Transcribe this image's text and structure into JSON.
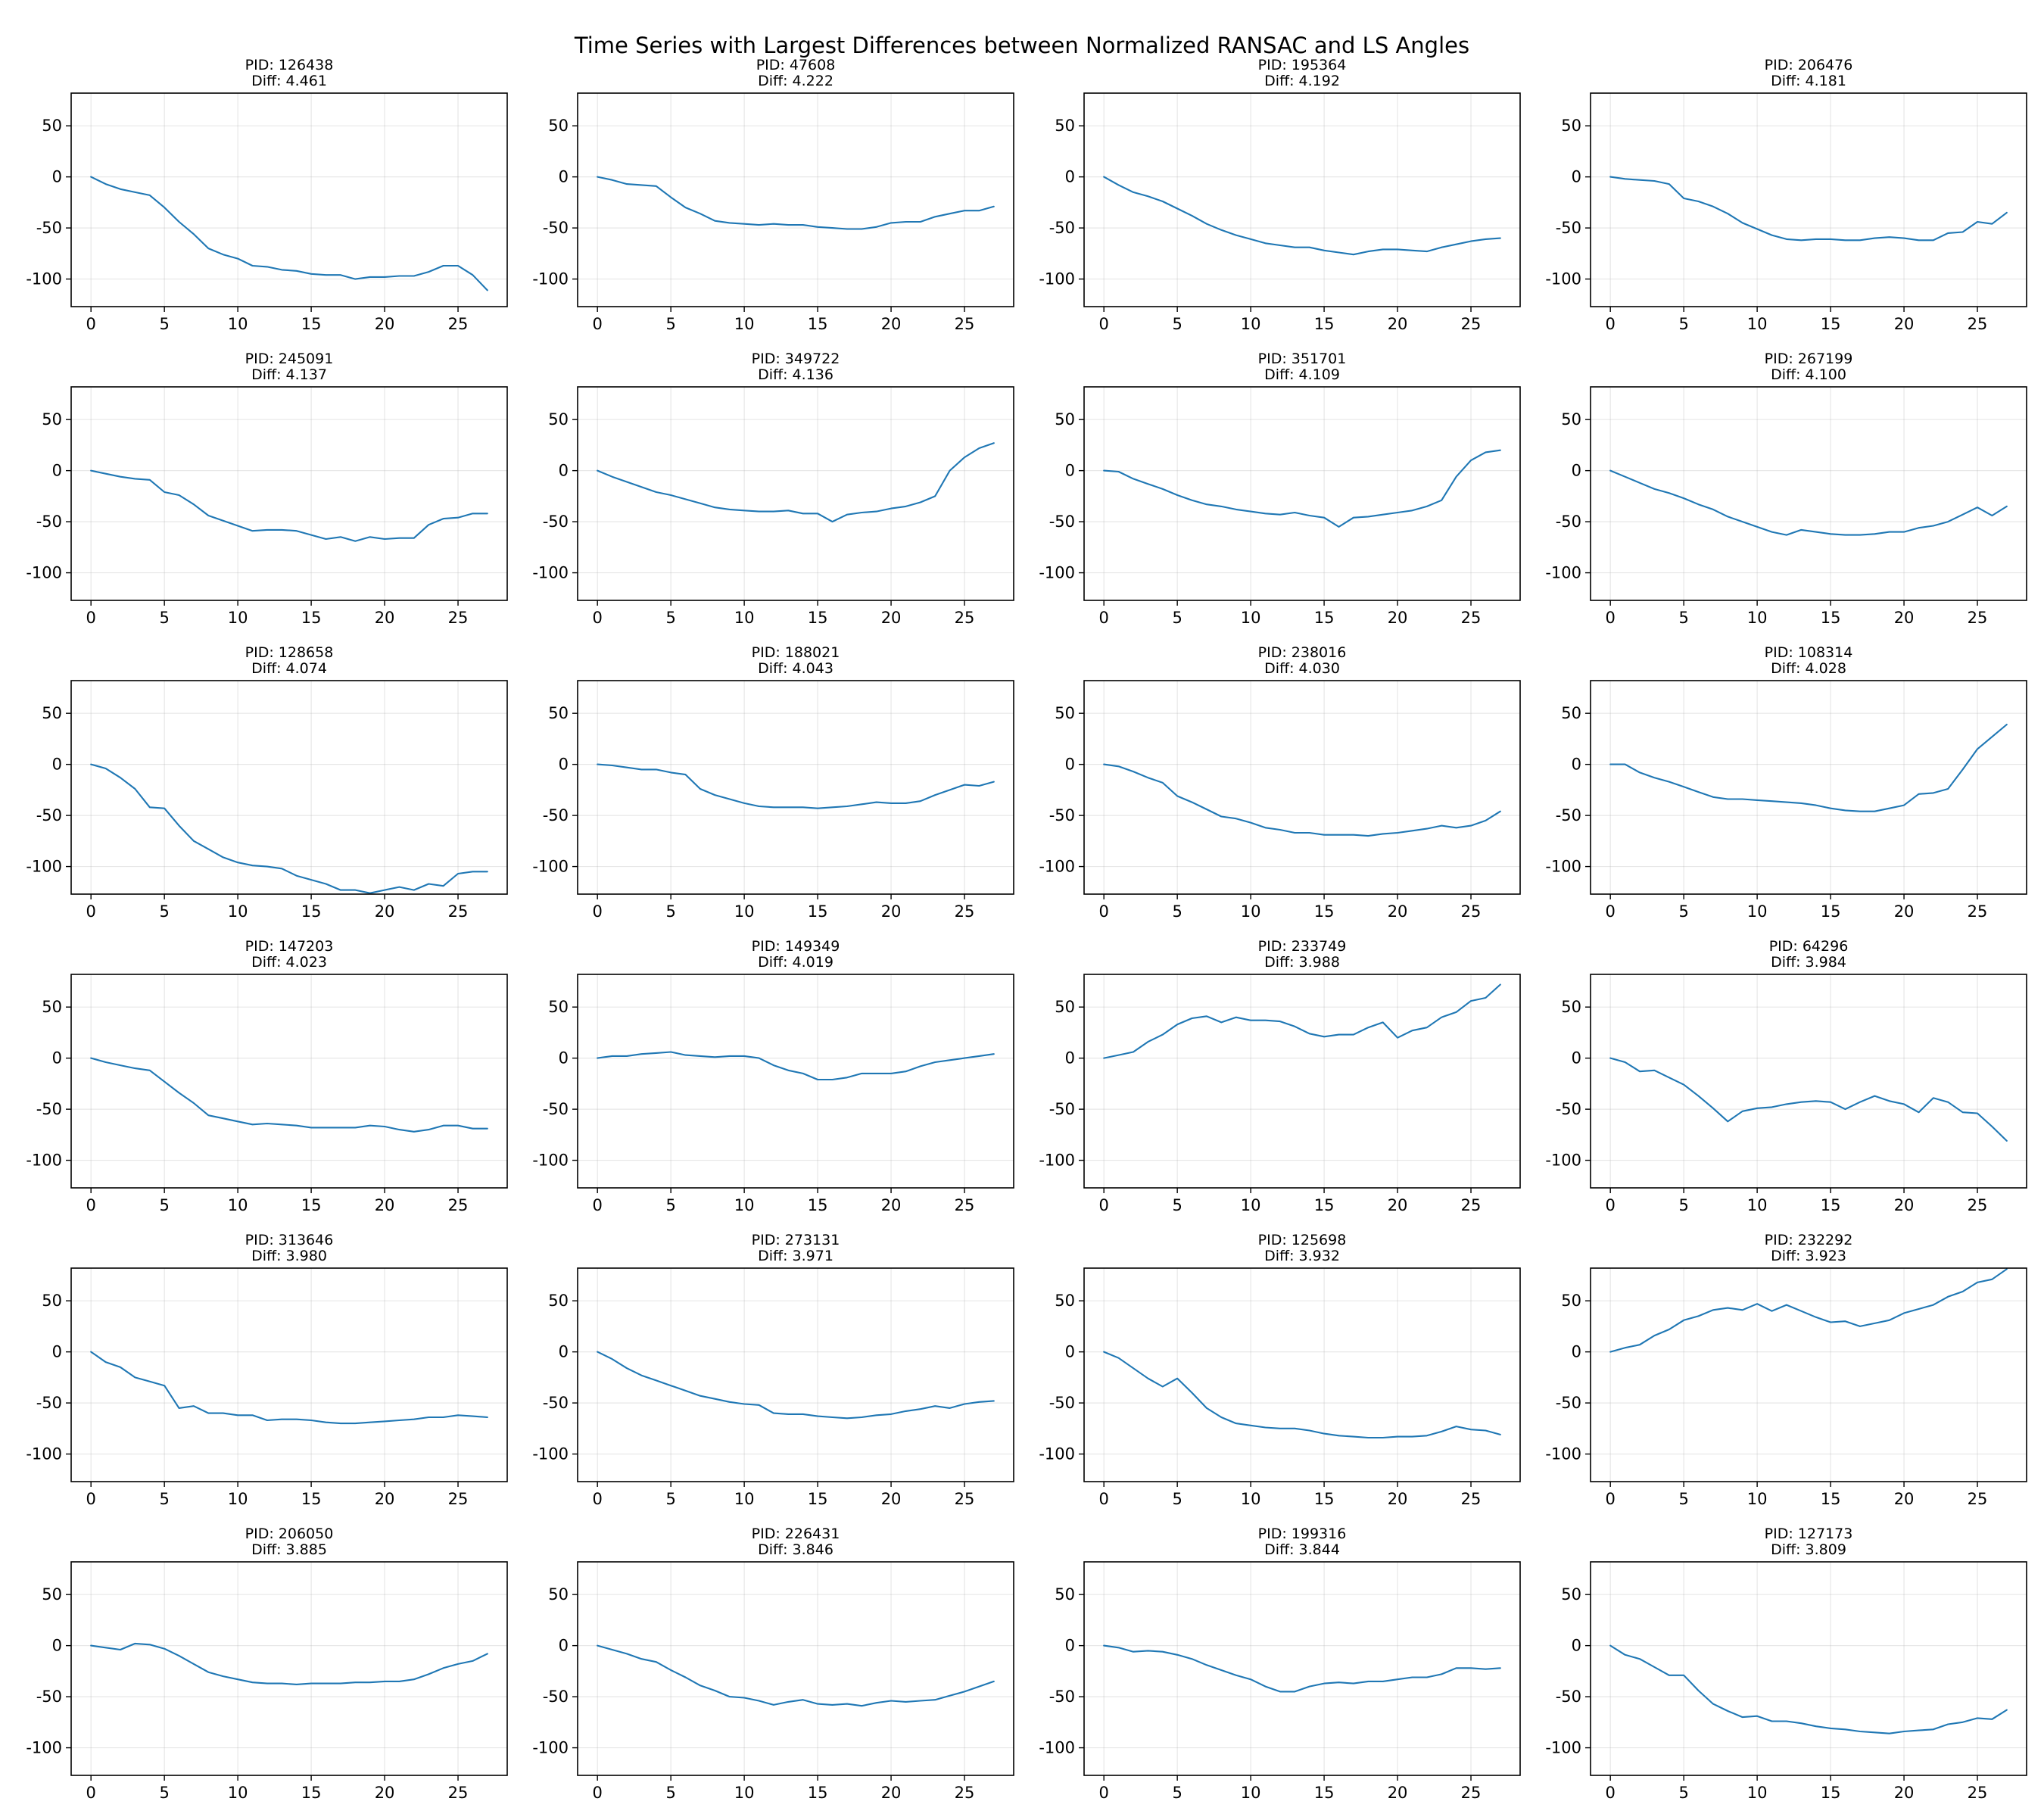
{
  "chart_data": {
    "type": "line",
    "title": "Time Series with Largest Differences between Normalized RANSAC and LS Angles",
    "layout": {
      "rows": 6,
      "cols": 4
    },
    "xlim": [
      -1.35,
      28.35
    ],
    "ylim": [
      -127,
      82
    ],
    "xticks": [
      0,
      5,
      10,
      15,
      20,
      25
    ],
    "yticks": [
      50,
      0,
      -50,
      -100
    ],
    "grid": true,
    "line_color": "#1f77b4",
    "x": [
      0,
      1,
      2,
      3,
      4,
      5,
      6,
      7,
      8,
      9,
      10,
      11,
      12,
      13,
      14,
      15,
      16,
      17,
      18,
      19,
      20,
      21,
      22,
      23,
      24,
      25,
      26,
      27
    ],
    "panels": [
      {
        "pid_label": "PID: 126438",
        "diff_label": "Diff: 4.461",
        "values": [
          0,
          -7,
          -12,
          -15,
          -18,
          -30,
          -44,
          -56,
          -70,
          -76,
          -80,
          -87,
          -88,
          -91,
          -92,
          -95,
          -96,
          -96,
          -100,
          -98,
          -98,
          -97,
          -97,
          -93,
          -87,
          -87,
          -96,
          -111
        ]
      },
      {
        "pid_label": "PID: 47608",
        "diff_label": "Diff: 4.222",
        "values": [
          0,
          -3,
          -7,
          -8,
          -9,
          -20,
          -30,
          -36,
          -43,
          -45,
          -46,
          -47,
          -46,
          -47,
          -47,
          -49,
          -50,
          -51,
          -51,
          -49,
          -45,
          -44,
          -44,
          -39,
          -36,
          -33,
          -33,
          -29
        ]
      },
      {
        "pid_label": "PID: 195364",
        "diff_label": "Diff: 4.192",
        "values": [
          0,
          -8,
          -15,
          -19,
          -24,
          -31,
          -38,
          -46,
          -52,
          -57,
          -61,
          -65,
          -67,
          -69,
          -69,
          -72,
          -74,
          -76,
          -73,
          -71,
          -71,
          -72,
          -73,
          -69,
          -66,
          -63,
          -61,
          -60
        ]
      },
      {
        "pid_label": "PID: 206476",
        "diff_label": "Diff: 4.181",
        "values": [
          0,
          -2,
          -3,
          -4,
          -7,
          -21,
          -24,
          -29,
          -36,
          -45,
          -51,
          -57,
          -61,
          -62,
          -61,
          -61,
          -62,
          -62,
          -60,
          -59,
          -60,
          -62,
          -62,
          -55,
          -54,
          -44,
          -46,
          -35
        ]
      },
      {
        "pid_label": "PID: 245091",
        "diff_label": "Diff: 4.137",
        "values": [
          0,
          -3,
          -6,
          -8,
          -9,
          -21,
          -24,
          -33,
          -44,
          -49,
          -54,
          -59,
          -58,
          -58,
          -59,
          -63,
          -67,
          -65,
          -69,
          -65,
          -67,
          -66,
          -66,
          -53,
          -47,
          -46,
          -42,
          -42
        ]
      },
      {
        "pid_label": "PID: 349722",
        "diff_label": "Diff: 4.136",
        "values": [
          0,
          -6,
          -11,
          -16,
          -21,
          -24,
          -28,
          -32,
          -36,
          -38,
          -39,
          -40,
          -40,
          -39,
          -42,
          -42,
          -50,
          -43,
          -41,
          -40,
          -37,
          -35,
          -31,
          -25,
          0,
          13,
          22,
          27
        ]
      },
      {
        "pid_label": "PID: 351701",
        "diff_label": "Diff: 4.109",
        "values": [
          0,
          -1,
          -8,
          -13,
          -18,
          -24,
          -29,
          -33,
          -35,
          -38,
          -40,
          -42,
          -43,
          -41,
          -44,
          -46,
          -55,
          -46,
          -45,
          -43,
          -41,
          -39,
          -35,
          -29,
          -6,
          10,
          18,
          20
        ]
      },
      {
        "pid_label": "PID: 267199",
        "diff_label": "Diff: 4.100",
        "values": [
          0,
          -6,
          -12,
          -18,
          -22,
          -27,
          -33,
          -38,
          -45,
          -50,
          -55,
          -60,
          -63,
          -58,
          -60,
          -62,
          -63,
          -63,
          -62,
          -60,
          -60,
          -56,
          -54,
          -50,
          -43,
          -36,
          -44,
          -35
        ]
      },
      {
        "pid_label": "PID: 128658",
        "diff_label": "Diff: 4.074",
        "values": [
          0,
          -4,
          -13,
          -24,
          -42,
          -43,
          -60,
          -75,
          -83,
          -91,
          -96,
          -99,
          -100,
          -102,
          -109,
          -113,
          -117,
          -123,
          -123,
          -126,
          -123,
          -120,
          -123,
          -117,
          -119,
          -107,
          -105,
          -105
        ]
      },
      {
        "pid_label": "PID: 188021",
        "diff_label": "Diff: 4.043",
        "values": [
          0,
          -1,
          -3,
          -5,
          -5,
          -8,
          -10,
          -24,
          -30,
          -34,
          -38,
          -41,
          -42,
          -42,
          -42,
          -43,
          -42,
          -41,
          -39,
          -37,
          -38,
          -38,
          -36,
          -30,
          -25,
          -20,
          -21,
          -17
        ]
      },
      {
        "pid_label": "PID: 238016",
        "diff_label": "Diff: 4.030",
        "values": [
          0,
          -2,
          -7,
          -13,
          -18,
          -31,
          -37,
          -44,
          -51,
          -53,
          -57,
          -62,
          -64,
          -67,
          -67,
          -69,
          -69,
          -69,
          -70,
          -68,
          -67,
          -65,
          -63,
          -60,
          -62,
          -60,
          -55,
          -46
        ]
      },
      {
        "pid_label": "PID: 108314",
        "diff_label": "Diff: 4.028",
        "values": [
          0,
          0,
          -8,
          -13,
          -17,
          -22,
          -27,
          -32,
          -34,
          -34,
          -35,
          -36,
          -37,
          -38,
          -40,
          -43,
          -45,
          -46,
          -46,
          -43,
          -40,
          -29,
          -28,
          -24,
          -5,
          15,
          27,
          39
        ]
      },
      {
        "pid_label": "PID: 147203",
        "diff_label": "Diff: 4.023",
        "values": [
          0,
          -4,
          -7,
          -10,
          -12,
          -23,
          -34,
          -44,
          -56,
          -59,
          -62,
          -65,
          -64,
          -65,
          -66,
          -68,
          -68,
          -68,
          -68,
          -66,
          -67,
          -70,
          -72,
          -70,
          -66,
          -66,
          -69,
          -69
        ]
      },
      {
        "pid_label": "PID: 149349",
        "diff_label": "Diff: 4.019",
        "values": [
          0,
          2,
          2,
          4,
          5,
          6,
          3,
          2,
          1,
          2,
          2,
          0,
          -7,
          -12,
          -15,
          -21,
          -21,
          -19,
          -15,
          -15,
          -15,
          -13,
          -8,
          -4,
          -2,
          0,
          2,
          4
        ]
      },
      {
        "pid_label": "PID: 233749",
        "diff_label": "Diff: 3.988",
        "values": [
          0,
          3,
          6,
          16,
          23,
          33,
          39,
          41,
          35,
          40,
          37,
          37,
          36,
          31,
          24,
          21,
          23,
          23,
          30,
          35,
          20,
          27,
          30,
          40,
          45,
          56,
          59,
          72
        ]
      },
      {
        "pid_label": "PID: 64296",
        "diff_label": "Diff: 3.984",
        "values": [
          0,
          -4,
          -13,
          -12,
          -19,
          -26,
          -37,
          -49,
          -62,
          -52,
          -49,
          -48,
          -45,
          -43,
          -42,
          -43,
          -50,
          -43,
          -37,
          -42,
          -45,
          -53,
          -39,
          -43,
          -53,
          -54,
          -67,
          -81
        ]
      },
      {
        "pid_label": "PID: 313646",
        "diff_label": "Diff: 3.980",
        "values": [
          0,
          -10,
          -15,
          -25,
          -29,
          -33,
          -55,
          -53,
          -60,
          -60,
          -62,
          -62,
          -67,
          -66,
          -66,
          -67,
          -69,
          -70,
          -70,
          -69,
          -68,
          -67,
          -66,
          -64,
          -64,
          -62,
          -63,
          -64
        ]
      },
      {
        "pid_label": "PID: 273131",
        "diff_label": "Diff: 3.971",
        "values": [
          0,
          -7,
          -16,
          -23,
          -28,
          -33,
          -38,
          -43,
          -46,
          -49,
          -51,
          -52,
          -60,
          -61,
          -61,
          -63,
          -64,
          -65,
          -64,
          -62,
          -61,
          -58,
          -56,
          -53,
          -55,
          -51,
          -49,
          -48
        ]
      },
      {
        "pid_label": "PID: 125698",
        "diff_label": "Diff: 3.932",
        "values": [
          0,
          -6,
          -16,
          -26,
          -34,
          -26,
          -40,
          -55,
          -64,
          -70,
          -72,
          -74,
          -75,
          -75,
          -77,
          -80,
          -82,
          -83,
          -84,
          -84,
          -83,
          -83,
          -82,
          -78,
          -73,
          -76,
          -77,
          -81
        ]
      },
      {
        "pid_label": "PID: 232292",
        "diff_label": "Diff: 3.923",
        "values": [
          0,
          4,
          7,
          16,
          22,
          31,
          35,
          41,
          43,
          41,
          47,
          40,
          46,
          40,
          34,
          29,
          30,
          25,
          28,
          31,
          38,
          42,
          46,
          54,
          59,
          68,
          71,
          81
        ]
      },
      {
        "pid_label": "PID: 206050",
        "diff_label": "Diff: 3.885",
        "values": [
          0,
          -2,
          -4,
          2,
          1,
          -3,
          -10,
          -18,
          -26,
          -30,
          -33,
          -36,
          -37,
          -37,
          -38,
          -37,
          -37,
          -37,
          -36,
          -36,
          -35,
          -35,
          -33,
          -28,
          -22,
          -18,
          -15,
          -8
        ]
      },
      {
        "pid_label": "PID: 226431",
        "diff_label": "Diff: 3.846",
        "values": [
          0,
          -4,
          -8,
          -13,
          -16,
          -24,
          -31,
          -39,
          -44,
          -50,
          -51,
          -54,
          -58,
          -55,
          -53,
          -57,
          -58,
          -57,
          -59,
          -56,
          -54,
          -55,
          -54,
          -53,
          -49,
          -45,
          -40,
          -35
        ]
      },
      {
        "pid_label": "PID: 199316",
        "diff_label": "Diff: 3.844",
        "values": [
          0,
          -2,
          -6,
          -5,
          -6,
          -9,
          -13,
          -19,
          -24,
          -29,
          -33,
          -40,
          -45,
          -45,
          -40,
          -37,
          -36,
          -37,
          -35,
          -35,
          -33,
          -31,
          -31,
          -28,
          -22,
          -22,
          -23,
          -22
        ]
      },
      {
        "pid_label": "PID: 127173",
        "diff_label": "Diff: 3.809",
        "values": [
          0,
          -9,
          -13,
          -21,
          -29,
          -29,
          -44,
          -57,
          -64,
          -70,
          -69,
          -74,
          -74,
          -76,
          -79,
          -81,
          -82,
          -84,
          -85,
          -86,
          -84,
          -83,
          -82,
          -77,
          -75,
          -71,
          -72,
          -63
        ]
      }
    ]
  }
}
